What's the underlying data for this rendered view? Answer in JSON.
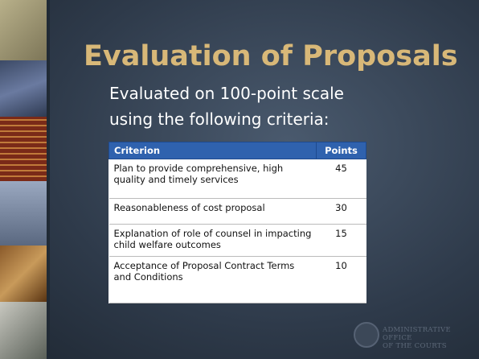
{
  "slide": {
    "title": "Evaluation of Proposals",
    "body": "Evaluated on 100-point scale using the following criteria:",
    "table": {
      "header": [
        "Criterion",
        "Points"
      ],
      "rows": [
        [
          "Plan to provide comprehensive, high quality and timely services",
          45
        ],
        [
          "Reasonableness of cost proposal",
          30
        ],
        [
          "Explanation of role of counsel in impacting child welfare outcomes",
          15
        ],
        [
          "Acceptance of Proposal Contract Terms and Conditions",
          10
        ]
      ]
    }
  },
  "footer": {
    "logo_lines": [
      "ADMINISTRATIVE OFFICE",
      "OF THE COURTS"
    ]
  }
}
